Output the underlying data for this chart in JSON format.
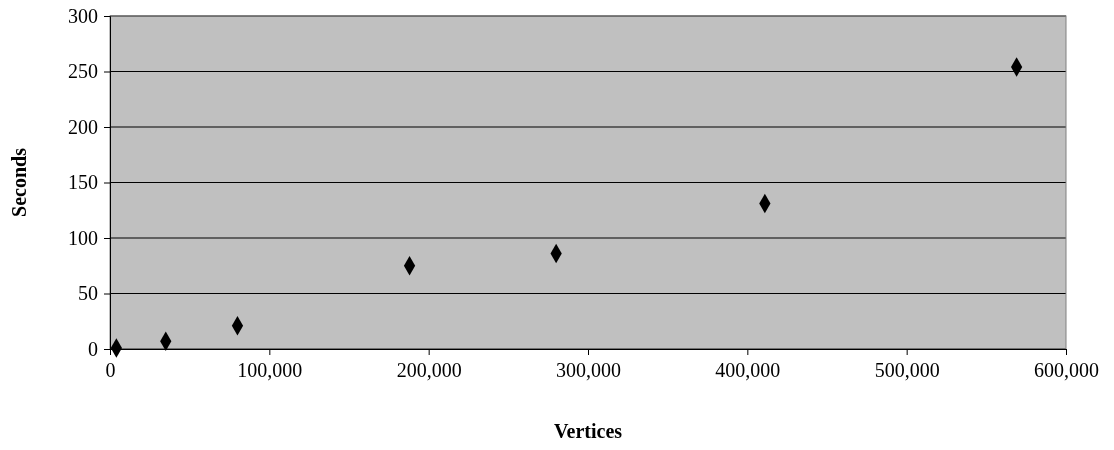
{
  "chart_data": {
    "type": "scatter",
    "xlabel": "Vertices",
    "ylabel": "Seconds",
    "x": [
      4000,
      35000,
      80000,
      188000,
      280000,
      411000,
      569000
    ],
    "values": [
      1,
      7,
      21,
      75,
      86,
      131,
      254
    ],
    "color": "#000000",
    "marker": "diamond",
    "grid": "y",
    "xlim": [
      0,
      600000
    ],
    "xticks": [
      {
        "value": 0,
        "label": "0"
      },
      {
        "value": 100000,
        "label": "100,000"
      },
      {
        "value": 200000,
        "label": "200,000"
      },
      {
        "value": 300000,
        "label": "300,000"
      },
      {
        "value": 400000,
        "label": "400,000"
      },
      {
        "value": 500000,
        "label": "500,000"
      },
      {
        "value": 600000,
        "label": "600,000"
      }
    ],
    "ylim": [
      0,
      300
    ],
    "yticks": [
      0,
      50,
      100,
      150,
      200,
      250,
      300
    ]
  }
}
